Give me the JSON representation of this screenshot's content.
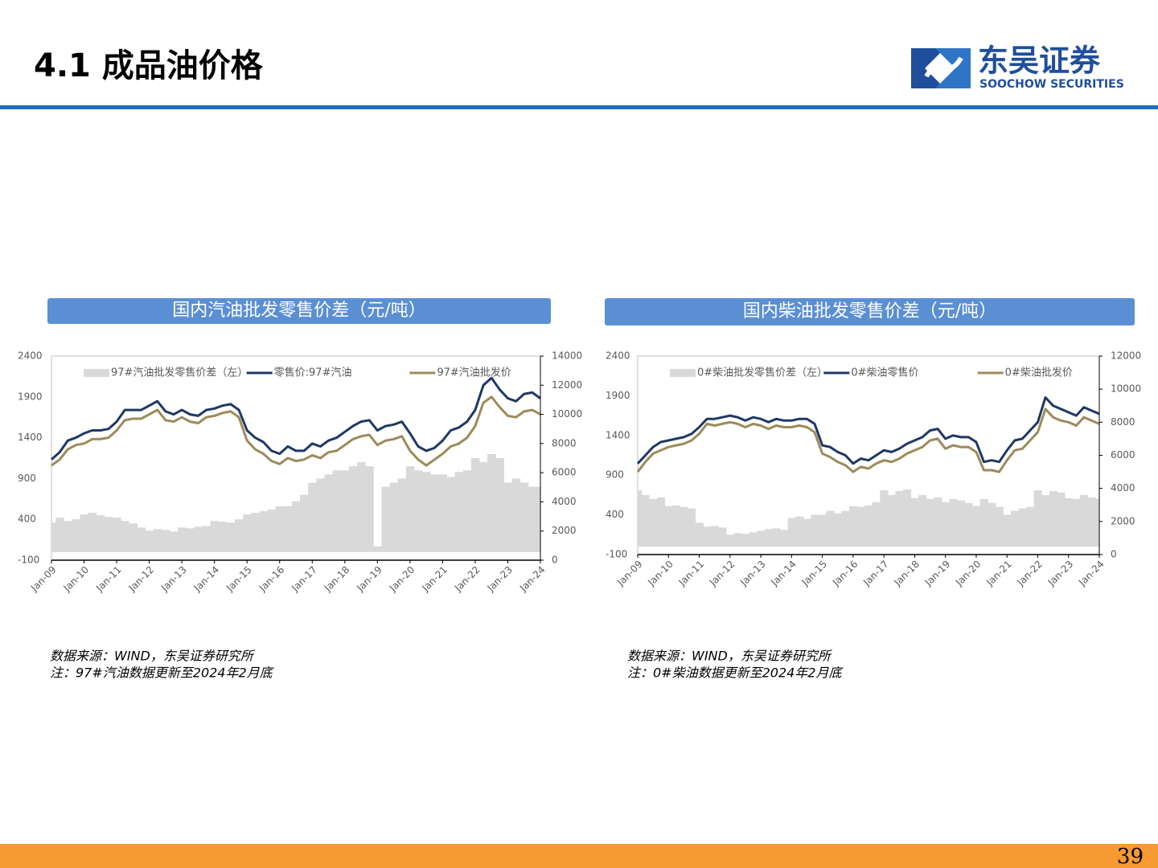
{
  "header": {
    "title": "4.1 成品油价格",
    "logo_cn": "东吴证券",
    "logo_en": "SOOCHOW SECURITIES"
  },
  "page_number": "39",
  "chart_data": [
    {
      "type": "combo",
      "title": "国内汽油批发零售价差（元/吨）",
      "notes": [
        "数据来源：WIND，东吴证券研究所",
        "注：97#汽油数据更新至2024年2月底"
      ],
      "categories": [
        "Jan-09",
        null,
        null,
        null,
        "Jan-10",
        null,
        null,
        null,
        "Jan-11",
        null,
        null,
        null,
        "Jan-12",
        null,
        null,
        null,
        "Jan-13",
        null,
        null,
        null,
        "Jan-14",
        null,
        null,
        null,
        "Jan-15",
        null,
        null,
        null,
        "Jan-16",
        null,
        null,
        null,
        "Jan-17",
        null,
        null,
        null,
        "Jan-18",
        null,
        null,
        null,
        "Jan-19",
        null,
        null,
        null,
        "Jan-20",
        null,
        null,
        null,
        "Jan-21",
        null,
        null,
        null,
        "Jan-22",
        null,
        null,
        null,
        "Jan-23",
        null,
        null,
        null,
        "Jan-24"
      ],
      "ylim": [
        -100,
        2400
      ],
      "yticks": [
        -100,
        400,
        900,
        1400,
        1900,
        2400
      ],
      "y2lim": [
        0,
        14000
      ],
      "y2ticks": [
        0,
        2000,
        4000,
        6000,
        8000,
        10000,
        12000,
        14000
      ],
      "legend": "top",
      "series": [
        {
          "name": "97#汽油批发零售价差（左）",
          "kind": "area",
          "color": "#d9d9d9",
          "values": [
            360,
            420,
            380,
            400,
            460,
            480,
            450,
            430,
            420,
            380,
            350,
            300,
            260,
            280,
            270,
            250,
            300,
            290,
            310,
            320,
            380,
            370,
            360,
            400,
            460,
            480,
            500,
            520,
            560,
            560,
            620,
            700,
            850,
            900,
            950,
            1000,
            1000,
            1050,
            1100,
            1050,
            70,
            800,
            850,
            900,
            1050,
            1000,
            980,
            950,
            950,
            920,
            980,
            1000,
            1150,
            1100,
            1200,
            1150,
            850,
            900,
            850,
            800,
            800
          ]
        },
        {
          "name": "零售价:97#汽油",
          "kind": "line",
          "axis": "y2",
          "color": "#1f3864",
          "values": [
            6900,
            7400,
            8200,
            8400,
            8700,
            8900,
            8900,
            9000,
            9500,
            10300,
            10300,
            10300,
            10600,
            10900,
            10200,
            10000,
            10300,
            10000,
            9900,
            10300,
            10400,
            10600,
            10700,
            10300,
            8900,
            8400,
            8100,
            7500,
            7300,
            7800,
            7500,
            7500,
            8000,
            7800,
            8200,
            8400,
            8800,
            9200,
            9500,
            9600,
            8900,
            9200,
            9300,
            9500,
            8700,
            7800,
            7500,
            7700,
            8200,
            8900,
            9100,
            9500,
            10300,
            12000,
            12500,
            11700,
            11100,
            10900,
            11400,
            11500,
            11100
          ]
        },
        {
          "name": "97#汽油批发价",
          "kind": "line",
          "axis": "y2",
          "color": "#9c8b5a",
          "values": [
            6500,
            6900,
            7600,
            7900,
            8000,
            8300,
            8300,
            8400,
            8900,
            9600,
            9700,
            9700,
            10000,
            10300,
            9600,
            9500,
            9800,
            9500,
            9400,
            9800,
            9900,
            10100,
            10200,
            9800,
            8200,
            7600,
            7300,
            6800,
            6600,
            7000,
            6800,
            6900,
            7200,
            7000,
            7400,
            7500,
            7900,
            8300,
            8500,
            8600,
            7900,
            8200,
            8300,
            8500,
            7500,
            6900,
            6500,
            6900,
            7300,
            7800,
            8000,
            8400,
            9200,
            10800,
            11200,
            10500,
            9900,
            9800,
            10200,
            10300,
            10000
          ]
        }
      ]
    },
    {
      "type": "combo",
      "title": "国内柴油批发零售价差（元/吨）",
      "notes": [
        "数据来源：WIND，东吴证券研究所",
        "注：0#柴油数据更新至2024年2月底"
      ],
      "categories": [
        "Jan-09",
        null,
        null,
        null,
        "Jan-10",
        null,
        null,
        null,
        "Jan-11",
        null,
        null,
        null,
        "Jan-12",
        null,
        null,
        null,
        "Jan-13",
        null,
        null,
        null,
        "Jan-14",
        null,
        null,
        null,
        "Jan-15",
        null,
        null,
        null,
        "Jan-16",
        null,
        null,
        null,
        "Jan-17",
        null,
        null,
        null,
        "Jan-18",
        null,
        null,
        null,
        "Jan-19",
        null,
        null,
        null,
        "Jan-20",
        null,
        null,
        null,
        "Jan-21",
        null,
        null,
        null,
        "Jan-22",
        null,
        null,
        null,
        "Jan-23",
        null,
        null,
        null,
        "Jan-24"
      ],
      "ylim": [
        -100,
        2400
      ],
      "yticks": [
        -100,
        400,
        900,
        1400,
        1900,
        2400
      ],
      "y2lim": [
        0,
        12000
      ],
      "y2ticks": [
        0,
        2000,
        4000,
        6000,
        8000,
        10000,
        12000
      ],
      "legend": "top",
      "series": [
        {
          "name": "0#柴油批发零售价差（左）",
          "kind": "area",
          "color": "#d9d9d9",
          "values": [
            710,
            650,
            600,
            620,
            510,
            520,
            500,
            480,
            300,
            250,
            260,
            240,
            150,
            170,
            160,
            180,
            200,
            220,
            230,
            210,
            360,
            380,
            350,
            400,
            400,
            450,
            420,
            450,
            510,
            500,
            520,
            560,
            710,
            650,
            700,
            720,
            610,
            650,
            600,
            620,
            560,
            600,
            580,
            550,
            510,
            600,
            550,
            500,
            400,
            450,
            480,
            500,
            710,
            650,
            700,
            680,
            610,
            600,
            650,
            620,
            600
          ]
        },
        {
          "name": "0#柴油零售价",
          "kind": "line",
          "axis": "y2",
          "color": "#1f3864",
          "values": [
            5500,
            6000,
            6500,
            6800,
            6900,
            7000,
            7100,
            7300,
            7700,
            8200,
            8200,
            8300,
            8400,
            8300,
            8100,
            8300,
            8200,
            8000,
            8200,
            8100,
            8100,
            8200,
            8200,
            7900,
            6600,
            6500,
            6200,
            6000,
            5500,
            5800,
            5700,
            6000,
            6300,
            6200,
            6400,
            6700,
            6900,
            7100,
            7500,
            7600,
            7000,
            7200,
            7100,
            7100,
            6800,
            5600,
            5700,
            5600,
            6300,
            6900,
            7000,
            7500,
            8000,
            9500,
            9000,
            8800,
            8600,
            8400,
            8900,
            8700,
            8500
          ]
        },
        {
          "name": "0#柴油批发价",
          "kind": "line",
          "axis": "y2",
          "color": "#9c8b5a",
          "values": [
            5000,
            5600,
            6100,
            6300,
            6500,
            6600,
            6700,
            6900,
            7300,
            7900,
            7800,
            7900,
            8000,
            7900,
            7700,
            7900,
            7800,
            7600,
            7800,
            7700,
            7700,
            7800,
            7700,
            7400,
            6100,
            5900,
            5600,
            5400,
            5000,
            5300,
            5200,
            5500,
            5700,
            5600,
            5800,
            6100,
            6300,
            6500,
            6900,
            7000,
            6400,
            6600,
            6500,
            6500,
            6200,
            5100,
            5100,
            5000,
            5700,
            6300,
            6400,
            6900,
            7400,
            8800,
            8300,
            8100,
            8000,
            7800,
            8300,
            8100,
            7900
          ]
        }
      ]
    }
  ]
}
